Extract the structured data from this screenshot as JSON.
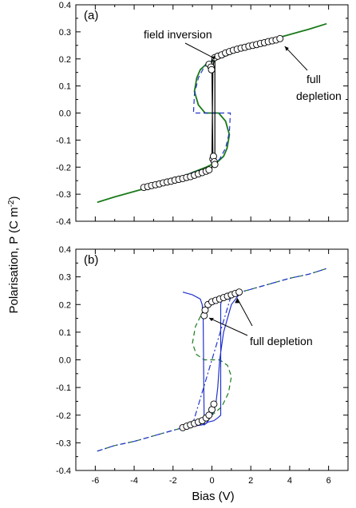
{
  "figure": {
    "ylabel": "Polarisation, P (C m",
    "ylabel_sup": "-2",
    "ylabel_close": ")",
    "xlabel": "Bias (V)"
  },
  "chart_data": [
    {
      "type": "line",
      "panel_label": "(a)",
      "xlim": [
        -7,
        7
      ],
      "ylim": [
        -0.4,
        0.4
      ],
      "yticks": [
        "-0.4",
        "-0.3",
        "-0.2",
        "-0.1",
        "0.0",
        "0.1",
        "0.2",
        "0.3",
        "0.4"
      ],
      "annotations": [
        {
          "text": "field inversion",
          "x": -0.1,
          "y": 0.19
        },
        {
          "text": "full\ndepletion",
          "x": 3.5,
          "y": 0.27
        }
      ],
      "series": [
        {
          "style": "solid",
          "color": "#1a7a1a",
          "x": [
            -5.9,
            -5.0,
            -4.0,
            -3.0,
            -2.0,
            -1.0,
            -0.3,
            0.3,
            0.6,
            0.78,
            0.9,
            0.7,
            0.35,
            0.0,
            -0.35,
            -0.7,
            -0.9,
            -0.78,
            -0.6,
            -0.3,
            0.3,
            1.0,
            2.0,
            3.0,
            4.0,
            5.0,
            5.9
          ],
          "y": [
            -0.33,
            -0.31,
            -0.29,
            -0.27,
            -0.25,
            -0.22,
            -0.2,
            -0.18,
            -0.16,
            -0.13,
            -0.08,
            -0.03,
            0.0,
            0.0,
            0.0,
            0.03,
            0.08,
            0.13,
            0.16,
            0.18,
            0.2,
            0.22,
            0.25,
            0.27,
            0.29,
            0.31,
            0.33
          ]
        },
        {
          "style": "dashed",
          "color": "#2233cc",
          "x": [
            -3.5,
            -2.5,
            -1.5,
            -0.8,
            -0.2,
            0.1,
            0.4,
            0.7,
            0.9,
            0.95,
            0.2,
            0.0,
            -0.2,
            -0.95,
            -0.9,
            -0.7,
            -0.4,
            -0.1,
            0.2,
            0.8,
            1.5,
            2.5,
            3.5
          ],
          "y": [
            -0.27,
            -0.255,
            -0.235,
            -0.215,
            -0.205,
            -0.19,
            -0.17,
            -0.13,
            -0.07,
            0.0,
            0.0,
            0.0,
            0.0,
            0.0,
            0.07,
            0.13,
            0.17,
            0.19,
            0.205,
            0.215,
            0.235,
            0.255,
            0.27
          ]
        },
        {
          "style": "solid",
          "color": "#000000",
          "x": [
            -3.5,
            -2.0,
            -0.5,
            0.0,
            0.0,
            0.05,
            0.1,
            0.15,
            0.15,
            0.1,
            0.05,
            0.0,
            0.0,
            0.5,
            2.0,
            3.5
          ],
          "y": [
            -0.275,
            -0.25,
            -0.22,
            -0.205,
            -0.17,
            0.17,
            0.19,
            0.2,
            -0.2,
            -0.19,
            -0.17,
            0.17,
            0.205,
            0.22,
            0.25,
            0.275
          ]
        },
        {
          "style": "markers",
          "x": [
            -3.5,
            -3.3,
            -3.1,
            -2.9,
            -2.7,
            -2.5,
            -2.3,
            -2.1,
            -1.9,
            -1.7,
            -1.5,
            -1.3,
            -1.1,
            -0.9,
            -0.7,
            -0.5,
            -0.3,
            -0.15,
            0.05,
            0.08,
            0.12,
            0.15,
            0.15,
            0.3,
            0.5,
            0.7,
            0.9,
            1.1,
            1.3,
            1.5,
            1.7,
            1.9,
            2.1,
            2.3,
            2.5,
            2.7,
            2.9,
            3.1,
            3.3,
            3.5,
            -0.15,
            -0.05,
            -0.02
          ],
          "y": [
            -0.275,
            -0.272,
            -0.268,
            -0.265,
            -0.262,
            -0.258,
            -0.255,
            -0.252,
            -0.248,
            -0.245,
            -0.242,
            -0.238,
            -0.235,
            -0.23,
            -0.225,
            -0.22,
            -0.215,
            -0.21,
            -0.17,
            -0.16,
            -0.18,
            -0.19,
            0.205,
            0.21,
            0.215,
            0.222,
            0.227,
            0.232,
            0.236,
            0.24,
            0.243,
            0.247,
            0.25,
            0.253,
            0.257,
            0.26,
            0.264,
            0.267,
            0.27,
            0.275,
            0.18,
            0.17,
            0.16
          ]
        }
      ]
    },
    {
      "type": "line",
      "panel_label": "(b)",
      "xlim": [
        -7,
        7
      ],
      "ylim": [
        -0.4,
        0.4
      ],
      "xticks": [
        "-6",
        "-4",
        "-2",
        "0",
        "2",
        "4",
        "6"
      ],
      "yticks": [
        "-0.4",
        "-0.3",
        "-0.2",
        "-0.1",
        "0.0",
        "0.1",
        "0.2",
        "0.3",
        "0.4"
      ],
      "annotations": [
        {
          "text": "full depletion",
          "x": 1.3,
          "y": 0.24
        }
      ],
      "series": [
        {
          "style": "dashed",
          "color": "#1a7a1a",
          "x": [
            -5.9,
            -5.0,
            -4.0,
            -3.0,
            -2.0,
            -1.2,
            -0.6,
            0.0,
            0.5,
            0.85,
            1.0,
            0.8,
            0.4,
            0.0,
            -0.4,
            -0.8,
            -1.0,
            -0.85,
            -0.5,
            0.0,
            0.6,
            1.2,
            2.0,
            3.0,
            4.0,
            5.0,
            5.9
          ],
          "y": [
            -0.33,
            -0.31,
            -0.295,
            -0.275,
            -0.255,
            -0.24,
            -0.22,
            -0.2,
            -0.17,
            -0.12,
            -0.06,
            -0.02,
            0.0,
            0.0,
            0.0,
            0.02,
            0.06,
            0.12,
            0.17,
            0.2,
            0.22,
            0.24,
            0.255,
            0.275,
            0.295,
            0.31,
            0.33
          ]
        },
        {
          "style": "dashdot",
          "color": "#2233cc",
          "x": [
            -5.9,
            -5.0,
            -4.0,
            -3.0,
            -2.0,
            -1.0,
            0.0,
            1.0,
            2.0,
            3.0,
            4.0,
            5.0,
            5.9
          ],
          "y": [
            -0.33,
            -0.31,
            -0.295,
            -0.275,
            -0.255,
            -0.235,
            0.0,
            0.235,
            0.255,
            0.275,
            0.295,
            0.31,
            0.33
          ]
        },
        {
          "style": "solid",
          "color": "#2233cc",
          "x": [
            -1.5,
            -1.0,
            -0.5,
            -0.3,
            -0.2,
            0.0,
            0.2,
            0.3,
            0.4,
            0.6,
            1.0,
            1.5,
            1.0,
            0.5,
            0.45,
            0.45,
            0.3,
            0.1,
            -0.2,
            -0.4,
            -0.45,
            -0.5,
            -0.6,
            -1.0,
            -1.5
          ],
          "y": [
            -0.245,
            -0.24,
            -0.235,
            -0.23,
            -0.22,
            -0.2,
            -0.16,
            -0.1,
            0.0,
            0.1,
            0.2,
            0.245,
            0.24,
            0.22,
            0.2,
            -0.2,
            -0.21,
            -0.22,
            -0.225,
            -0.235,
            0.16,
            0.2,
            0.22,
            0.235,
            0.245
          ]
        },
        {
          "style": "markers",
          "x": [
            -1.5,
            -1.3,
            -1.1,
            -0.9,
            -0.7,
            -0.5,
            -0.3,
            -0.15,
            0.0,
            0.1,
            -0.4,
            -0.35,
            -0.2,
            0.0,
            0.2,
            0.4,
            0.6,
            0.8,
            1.0,
            1.2,
            1.4
          ],
          "y": [
            -0.245,
            -0.24,
            -0.235,
            -0.23,
            -0.225,
            -0.22,
            -0.21,
            -0.2,
            -0.18,
            -0.16,
            0.16,
            0.18,
            0.2,
            0.21,
            0.215,
            0.22,
            0.225,
            0.23,
            0.235,
            0.24,
            0.245
          ]
        }
      ]
    }
  ]
}
